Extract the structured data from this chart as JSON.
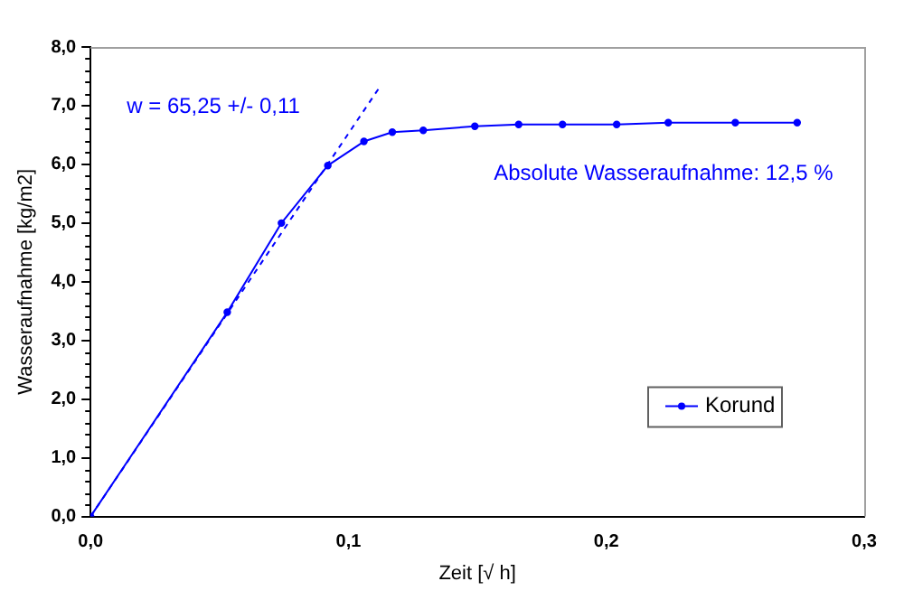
{
  "chart_data": {
    "type": "line",
    "xlabel": "Zeit [√ h]",
    "ylabel": "Wasseraufnahme [kg/m2]",
    "annotations": [
      "w = 65,25 +/- 0,11",
      "Absolute Wasseraufnahme: 12,5 %"
    ],
    "series": [
      {
        "name": "Korund",
        "color": "#0000ff",
        "marker": "circle",
        "line_style": "solid",
        "x": [
          0,
          0.053,
          0.074,
          0.092,
          0.106,
          0.117,
          0.129,
          0.149,
          0.166,
          0.183,
          0.204,
          0.224,
          0.25,
          0.274
        ],
        "values": [
          0,
          3.48,
          5.0,
          5.98,
          6.39,
          6.55,
          6.58,
          6.65,
          6.68,
          6.68,
          6.68,
          6.71,
          6.71,
          6.71
        ]
      },
      {
        "color": "#0000ff",
        "marker": "none",
        "line_style": "dashed",
        "x": [
          0,
          0.112
        ],
        "values": [
          0,
          7.31
        ]
      }
    ],
    "xlim": [
      0,
      0.3
    ],
    "xticks": [
      {
        "value": 0,
        "label": "0,0"
      },
      {
        "value": 0.1,
        "label": "0,1"
      },
      {
        "value": 0.2,
        "label": "0,2"
      },
      {
        "value": 0.3,
        "label": "0,3"
      }
    ],
    "ylim": [
      0,
      8
    ],
    "yticks": [
      {
        "value": 0,
        "label": "0,0"
      },
      {
        "value": 1,
        "label": "1,0"
      },
      {
        "value": 2,
        "label": "2,0"
      },
      {
        "value": 3,
        "label": "3,0"
      },
      {
        "value": 4,
        "label": "4,0"
      },
      {
        "value": 5,
        "label": "5,0"
      },
      {
        "value": 6,
        "label": "6,0"
      },
      {
        "value": 7,
        "label": "7,0"
      },
      {
        "value": 8,
        "label": "8,0"
      }
    ],
    "grid": false,
    "legend": "bottom right"
  }
}
